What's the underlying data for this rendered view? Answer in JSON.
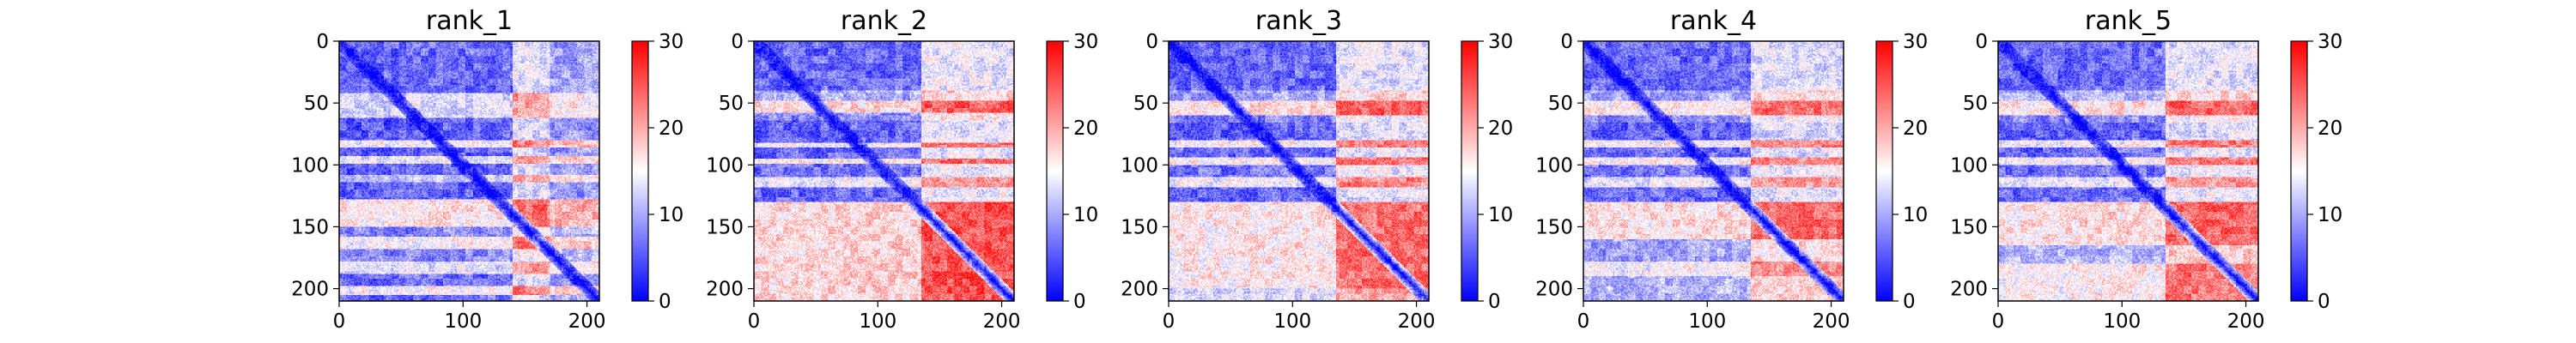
{
  "chart_data": [
    {
      "type": "heatmap",
      "title": "rank_1",
      "x_ticks": [
        "0",
        "100",
        "200"
      ],
      "y_ticks": [
        "0",
        "50",
        "100",
        "150",
        "200"
      ],
      "colorbar": {
        "ticks": [
          "0",
          "10",
          "20",
          "30"
        ],
        "range": [
          0,
          30
        ],
        "colors": [
          "#0000ff",
          "#ffffff",
          "#ff0000"
        ]
      },
      "matrix_size": 210,
      "xlim": [
        0,
        210
      ],
      "ylim": [
        210,
        0
      ],
      "y_bands": [
        [
          0,
          42,
          6
        ],
        [
          42,
          62,
          18
        ],
        [
          62,
          80,
          5
        ],
        [
          80,
          86,
          22
        ],
        [
          86,
          93,
          5
        ],
        [
          93,
          99,
          20
        ],
        [
          99,
          108,
          5
        ],
        [
          108,
          114,
          16
        ],
        [
          114,
          128,
          5
        ],
        [
          128,
          150,
          24
        ],
        [
          150,
          158,
          9
        ],
        [
          158,
          168,
          22
        ],
        [
          168,
          178,
          9
        ],
        [
          178,
          188,
          19
        ],
        [
          188,
          198,
          6
        ],
        [
          198,
          205,
          22
        ],
        [
          205,
          210,
          6
        ]
      ],
      "x_bands": [
        [
          0,
          60,
          6
        ],
        [
          60,
          140,
          7
        ],
        [
          140,
          170,
          23
        ],
        [
          170,
          210,
          14
        ]
      ],
      "diagonal_width": 8
    },
    {
      "type": "heatmap",
      "title": "rank_2",
      "x_ticks": [
        "0",
        "100",
        "200"
      ],
      "y_ticks": [
        "0",
        "50",
        "100",
        "150",
        "200"
      ],
      "colorbar": {
        "ticks": [
          "0",
          "10",
          "20",
          "30"
        ],
        "range": [
          0,
          30
        ],
        "colors": [
          "#0000ff",
          "#ffffff",
          "#ff0000"
        ]
      },
      "matrix_size": 210,
      "xlim": [
        0,
        210
      ],
      "ylim": [
        210,
        0
      ],
      "y_bands": [
        [
          0,
          40,
          6
        ],
        [
          40,
          48,
          13
        ],
        [
          48,
          58,
          25
        ],
        [
          58,
          64,
          10
        ],
        [
          64,
          82,
          5
        ],
        [
          82,
          86,
          22
        ],
        [
          86,
          95,
          6
        ],
        [
          95,
          99,
          23
        ],
        [
          99,
          110,
          7
        ],
        [
          110,
          118,
          20
        ],
        [
          118,
          130,
          6
        ],
        [
          130,
          210,
          26
        ]
      ],
      "x_bands": [
        [
          0,
          55,
          6
        ],
        [
          55,
          135,
          7
        ],
        [
          135,
          210,
          24
        ]
      ],
      "diagonal_width": 8
    },
    {
      "type": "heatmap",
      "title": "rank_3",
      "x_ticks": [
        "0",
        "100",
        "200"
      ],
      "y_ticks": [
        "0",
        "50",
        "100",
        "150",
        "200"
      ],
      "colorbar": {
        "ticks": [
          "0",
          "10",
          "20",
          "30"
        ],
        "range": [
          0,
          30
        ],
        "colors": [
          "#0000ff",
          "#ffffff",
          "#ff0000"
        ]
      },
      "matrix_size": 210,
      "xlim": [
        0,
        210
      ],
      "ylim": [
        210,
        0
      ],
      "y_bands": [
        [
          0,
          40,
          6
        ],
        [
          40,
          48,
          12
        ],
        [
          48,
          60,
          25
        ],
        [
          60,
          66,
          8
        ],
        [
          66,
          80,
          5
        ],
        [
          80,
          86,
          22
        ],
        [
          86,
          94,
          6
        ],
        [
          94,
          100,
          23
        ],
        [
          100,
          110,
          7
        ],
        [
          110,
          118,
          21
        ],
        [
          118,
          130,
          6
        ],
        [
          130,
          200,
          24
        ],
        [
          200,
          210,
          18
        ]
      ],
      "x_bands": [
        [
          0,
          55,
          6
        ],
        [
          55,
          135,
          7
        ],
        [
          135,
          210,
          23
        ]
      ],
      "diagonal_width": 8
    },
    {
      "type": "heatmap",
      "title": "rank_4",
      "x_ticks": [
        "0",
        "100",
        "200"
      ],
      "y_ticks": [
        "0",
        "50",
        "100",
        "150",
        "200"
      ],
      "colorbar": {
        "ticks": [
          "0",
          "10",
          "20",
          "30"
        ],
        "range": [
          0,
          30
        ],
        "colors": [
          "#0000ff",
          "#ffffff",
          "#ff0000"
        ]
      },
      "matrix_size": 210,
      "xlim": [
        0,
        210
      ],
      "ylim": [
        210,
        0
      ],
      "y_bands": [
        [
          0,
          40,
          6
        ],
        [
          40,
          48,
          13
        ],
        [
          48,
          60,
          24
        ],
        [
          60,
          66,
          9
        ],
        [
          66,
          80,
          5
        ],
        [
          80,
          86,
          22
        ],
        [
          86,
          94,
          6
        ],
        [
          94,
          100,
          22
        ],
        [
          100,
          110,
          7
        ],
        [
          110,
          118,
          20
        ],
        [
          118,
          130,
          6
        ],
        [
          130,
          160,
          25
        ],
        [
          160,
          178,
          12
        ],
        [
          178,
          190,
          22
        ],
        [
          190,
          210,
          14
        ]
      ],
      "x_bands": [
        [
          0,
          55,
          6
        ],
        [
          55,
          135,
          7
        ],
        [
          135,
          210,
          22
        ]
      ],
      "diagonal_width": 8
    },
    {
      "type": "heatmap",
      "title": "rank_5",
      "x_ticks": [
        "0",
        "100",
        "200"
      ],
      "y_ticks": [
        "0",
        "50",
        "100",
        "150",
        "200"
      ],
      "colorbar": {
        "ticks": [
          "0",
          "10",
          "20",
          "30"
        ],
        "range": [
          0,
          30
        ],
        "colors": [
          "#0000ff",
          "#ffffff",
          "#ff0000"
        ]
      },
      "matrix_size": 210,
      "xlim": [
        0,
        210
      ],
      "ylim": [
        210,
        0
      ],
      "y_bands": [
        [
          0,
          40,
          6
        ],
        [
          40,
          48,
          13
        ],
        [
          48,
          60,
          25
        ],
        [
          60,
          66,
          9
        ],
        [
          66,
          80,
          5
        ],
        [
          80,
          86,
          22
        ],
        [
          86,
          94,
          6
        ],
        [
          94,
          100,
          22
        ],
        [
          100,
          110,
          7
        ],
        [
          110,
          118,
          20
        ],
        [
          118,
          130,
          6
        ],
        [
          130,
          165,
          25
        ],
        [
          165,
          180,
          14
        ],
        [
          180,
          210,
          23
        ]
      ],
      "x_bands": [
        [
          0,
          55,
          6
        ],
        [
          55,
          135,
          7
        ],
        [
          135,
          210,
          23
        ]
      ],
      "diagonal_width": 8
    }
  ]
}
